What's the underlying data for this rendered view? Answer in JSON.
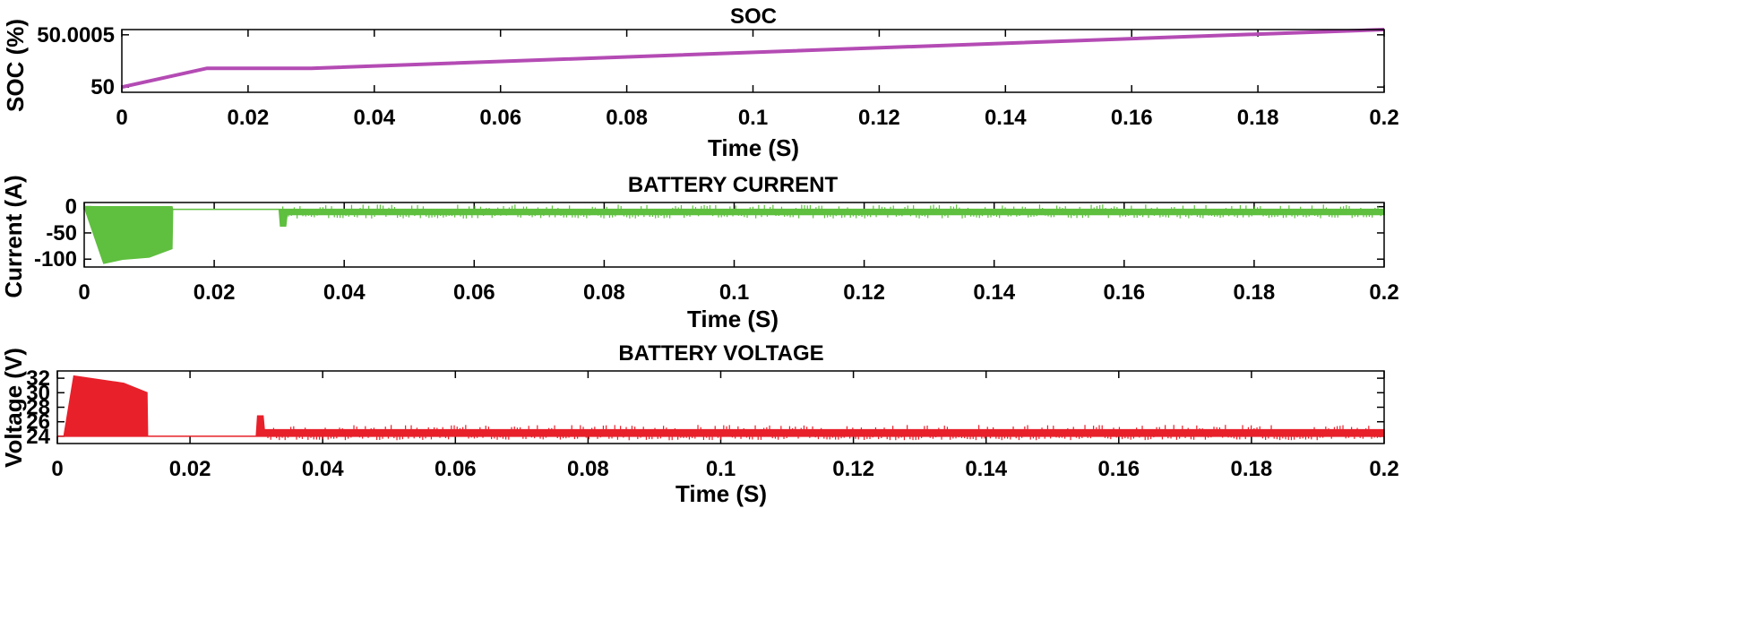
{
  "colors": {
    "soc": "#b44bb4",
    "current": "#5fbf3f",
    "voltage": "#e8202a",
    "axis": "#000000"
  },
  "chart_data": [
    {
      "type": "line",
      "title": "SOC",
      "xlabel": "Time (S)",
      "ylabel": "SOC (%)",
      "xlim": [
        0,
        0.2
      ],
      "ylim": [
        49.99995,
        50.00055
      ],
      "xticks": [
        "0",
        "0.02",
        "0.04",
        "0.06",
        "0.08",
        "0.1",
        "0.12",
        "0.14",
        "0.16",
        "0.18",
        "0.2"
      ],
      "yticks": [
        "50",
        "50.0005"
      ],
      "grid": false,
      "series": [
        {
          "x": [
            0,
            0.0135,
            0.03,
            0.2
          ],
          "y": [
            50.0,
            50.00018,
            50.00018,
            50.00055
          ]
        }
      ]
    },
    {
      "type": "area",
      "title": "BATTERY CURRENT",
      "xlabel": "Time (S)",
      "ylabel": "Current (A)",
      "xlim": [
        0,
        0.2
      ],
      "ylim": [
        -115,
        8
      ],
      "xticks": [
        "0",
        "0.02",
        "0.04",
        "0.06",
        "0.08",
        "0.1",
        "0.12",
        "0.14",
        "0.16",
        "0.18",
        "0.2"
      ],
      "yticks": [
        "0",
        "-50",
        "-100"
      ],
      "grid": false,
      "series": [
        {
          "description": "envelope of the oscillating current (band between upper and lower)",
          "x": [
            0,
            0.003,
            0.006,
            0.01,
            0.0135,
            0.0136,
            0.03,
            0.0302,
            0.031,
            0.0312,
            0.2
          ],
          "upper": [
            0,
            0,
            0,
            0,
            0,
            -5,
            -5,
            -5,
            -5,
            -5,
            -5
          ],
          "lower": [
            0,
            -108,
            -100,
            -96,
            -80,
            -5,
            -5,
            -37,
            -37,
            -15,
            -15
          ]
        }
      ]
    },
    {
      "type": "area",
      "title": "BATTERY VOLTAGE",
      "xlabel": "Time (S)",
      "ylabel": "Voltage (V)",
      "xlim": [
        0,
        0.2
      ],
      "ylim": [
        23,
        33
      ],
      "xticks": [
        "0",
        "0.02",
        "0.04",
        "0.06",
        "0.08",
        "0.1",
        "0.12",
        "0.14",
        "0.16",
        "0.18",
        "0.2"
      ],
      "yticks": [
        "32",
        "30",
        "28",
        "26",
        "24"
      ],
      "grid": false,
      "series": [
        {
          "description": "envelope of the oscillating voltage (band between upper and lower)",
          "x": [
            0,
            0.001,
            0.0025,
            0.01,
            0.0135,
            0.0136,
            0.03,
            0.0302,
            0.031,
            0.0312,
            0.2
          ],
          "upper": [
            24,
            24,
            32.3,
            31.3,
            30,
            24,
            24,
            26.8,
            26.8,
            24.9,
            24.9
          ],
          "lower": [
            24,
            24,
            24,
            24,
            24,
            24,
            24,
            24,
            24,
            24,
            24
          ]
        }
      ]
    }
  ]
}
